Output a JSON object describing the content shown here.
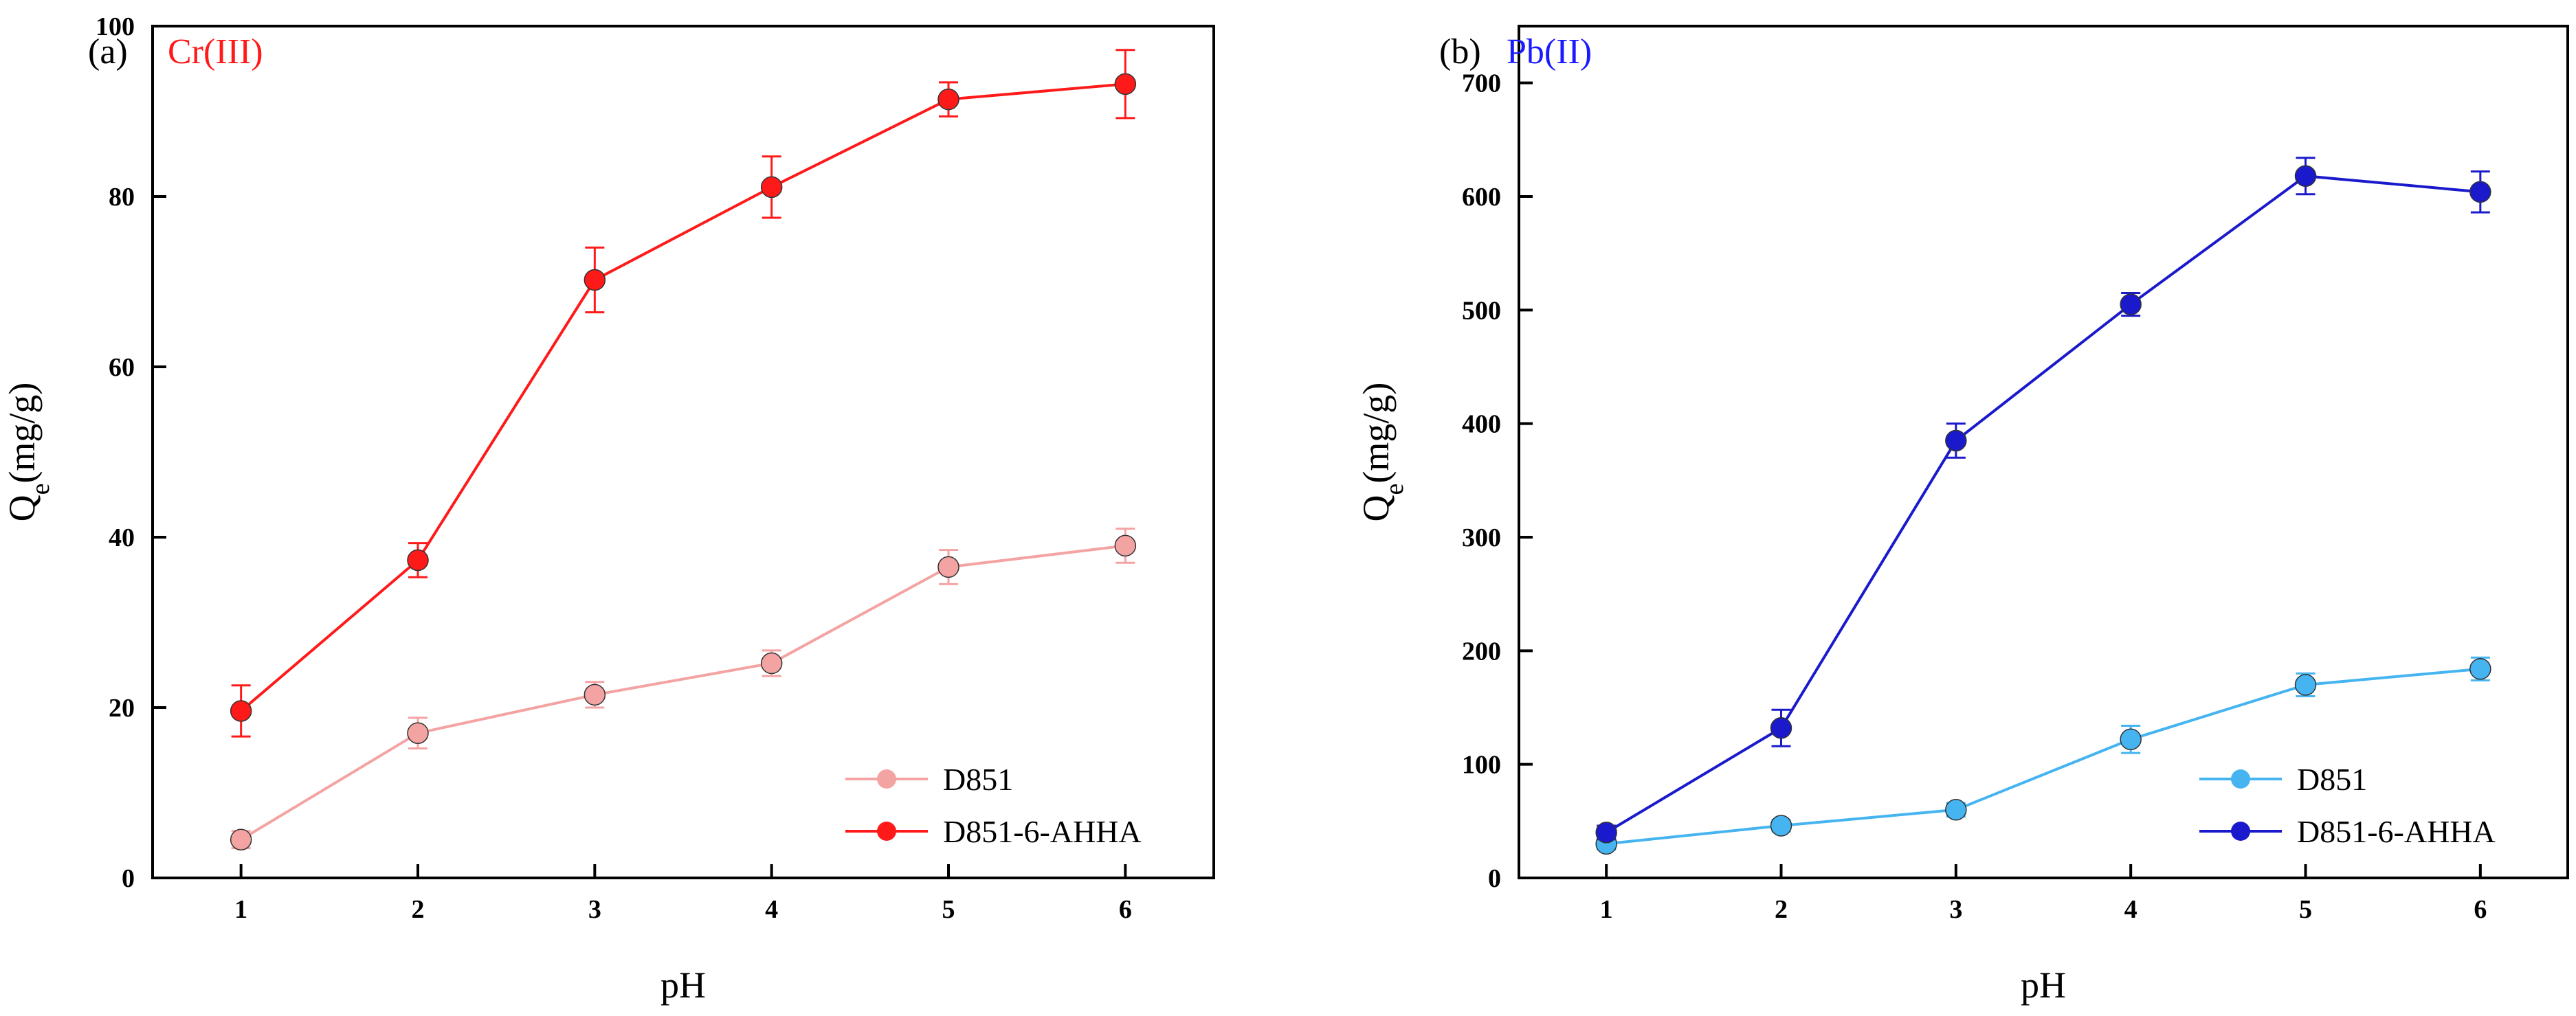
{
  "chart_data": [
    {
      "type": "line",
      "panel_label": "(a)",
      "ion_label": "Cr(III)",
      "ion_label_color": "#ff1a1a",
      "xlabel": "pH",
      "ylabel_main": "Q",
      "ylabel_sub": "e",
      "ylabel_rest": "(mg/g)",
      "x": [
        1,
        2,
        3,
        4,
        5,
        6
      ],
      "xlim": [
        0.5,
        6.5
      ],
      "ylim": [
        0,
        100
      ],
      "yticks": [
        0,
        20,
        40,
        60,
        80,
        100
      ],
      "xticks": [
        1,
        2,
        3,
        4,
        5,
        6
      ],
      "legend_position": "bottom-right",
      "series": [
        {
          "name": "D851",
          "color": "#f4a3a3",
          "values": [
            4.5,
            17.0,
            21.5,
            25.2,
            36.5,
            39.0
          ],
          "errors": [
            1.0,
            1.8,
            1.5,
            1.5,
            2.0,
            2.0
          ]
        },
        {
          "name": "D851-6-AHHA",
          "color": "#ff1a1a",
          "values": [
            19.6,
            37.3,
            70.2,
            81.1,
            91.4,
            93.2
          ],
          "errors": [
            3.0,
            2.0,
            3.8,
            3.6,
            2.0,
            4.0
          ]
        }
      ]
    },
    {
      "type": "line",
      "panel_label": "(b)",
      "ion_label": "Pb(II)",
      "ion_label_color": "#1a1aff",
      "xlabel": "pH",
      "ylabel_main": "Q",
      "ylabel_sub": "e",
      "ylabel_rest": "(mg/g)",
      "x": [
        1,
        2,
        3,
        4,
        5,
        6
      ],
      "xlim": [
        0.5,
        6.5
      ],
      "ylim": [
        0,
        750
      ],
      "yticks": [
        0,
        100,
        200,
        300,
        400,
        500,
        600,
        700
      ],
      "xticks": [
        1,
        2,
        3,
        4,
        5,
        6
      ],
      "legend_position": "bottom-right",
      "series": [
        {
          "name": "D851",
          "color": "#45b4f0",
          "values": [
            30,
            46,
            60,
            122,
            170,
            184
          ],
          "errors": [
            5,
            5,
            6,
            12,
            10,
            10
          ]
        },
        {
          "name": "D851-6-AHHA",
          "color": "#1a1acc",
          "values": [
            40,
            132,
            385,
            505,
            618,
            604
          ],
          "errors": [
            6,
            16,
            15,
            10,
            16,
            18
          ]
        }
      ]
    }
  ]
}
